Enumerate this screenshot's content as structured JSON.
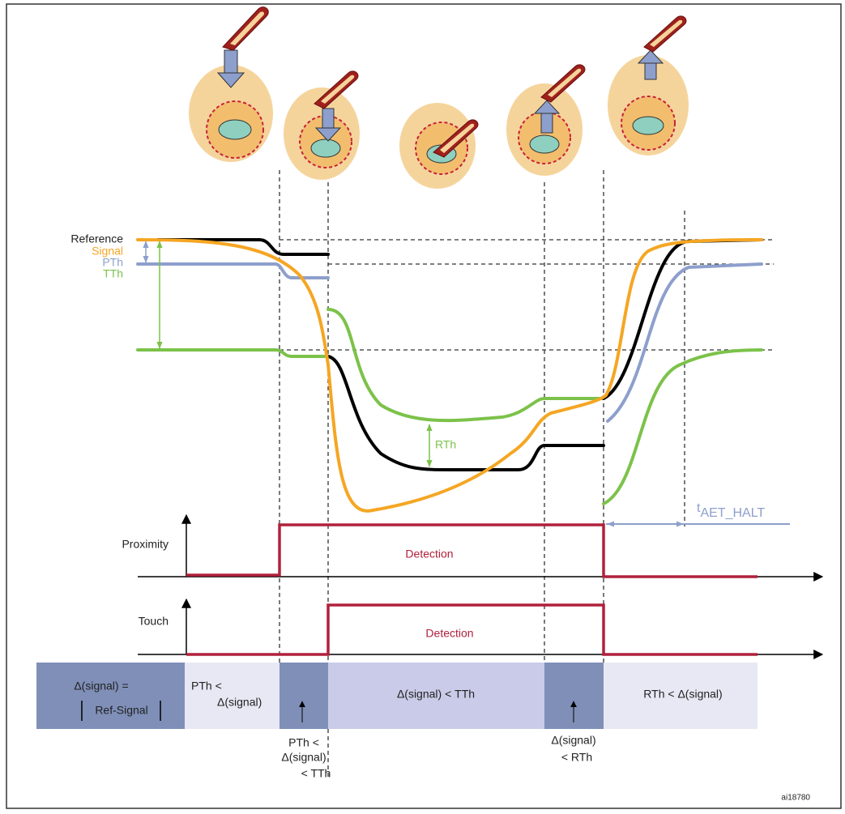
{
  "graph_labels": {
    "reference": "Reference",
    "signal": "Signal",
    "pth": "PTh",
    "tth": "TTh",
    "rth": "RTh",
    "t_aet_halt": {
      "symbol": "t",
      "subscript": "AET_HALT"
    }
  },
  "timing_rows": [
    {
      "label": "Proximity",
      "state": "Detection"
    },
    {
      "label": "Touch",
      "state": "Detection"
    }
  ],
  "phases": [
    {
      "lines": [
        "Δ(signal) =",
        "Ref-Signal"
      ]
    },
    {
      "lines": [
        "PTh <",
        "Δ(signal)"
      ]
    },
    {
      "lines": [
        "Δ(signal) < TTh"
      ]
    },
    {
      "lines": [
        "RTh < Δ(signal)"
      ]
    }
  ],
  "phase_notes": [
    [
      "PTh <",
      "Δ(signal)",
      "< TTh"
    ],
    [
      "Δ(signal)",
      "< RTh"
    ]
  ],
  "figure_id": "ai18780"
}
